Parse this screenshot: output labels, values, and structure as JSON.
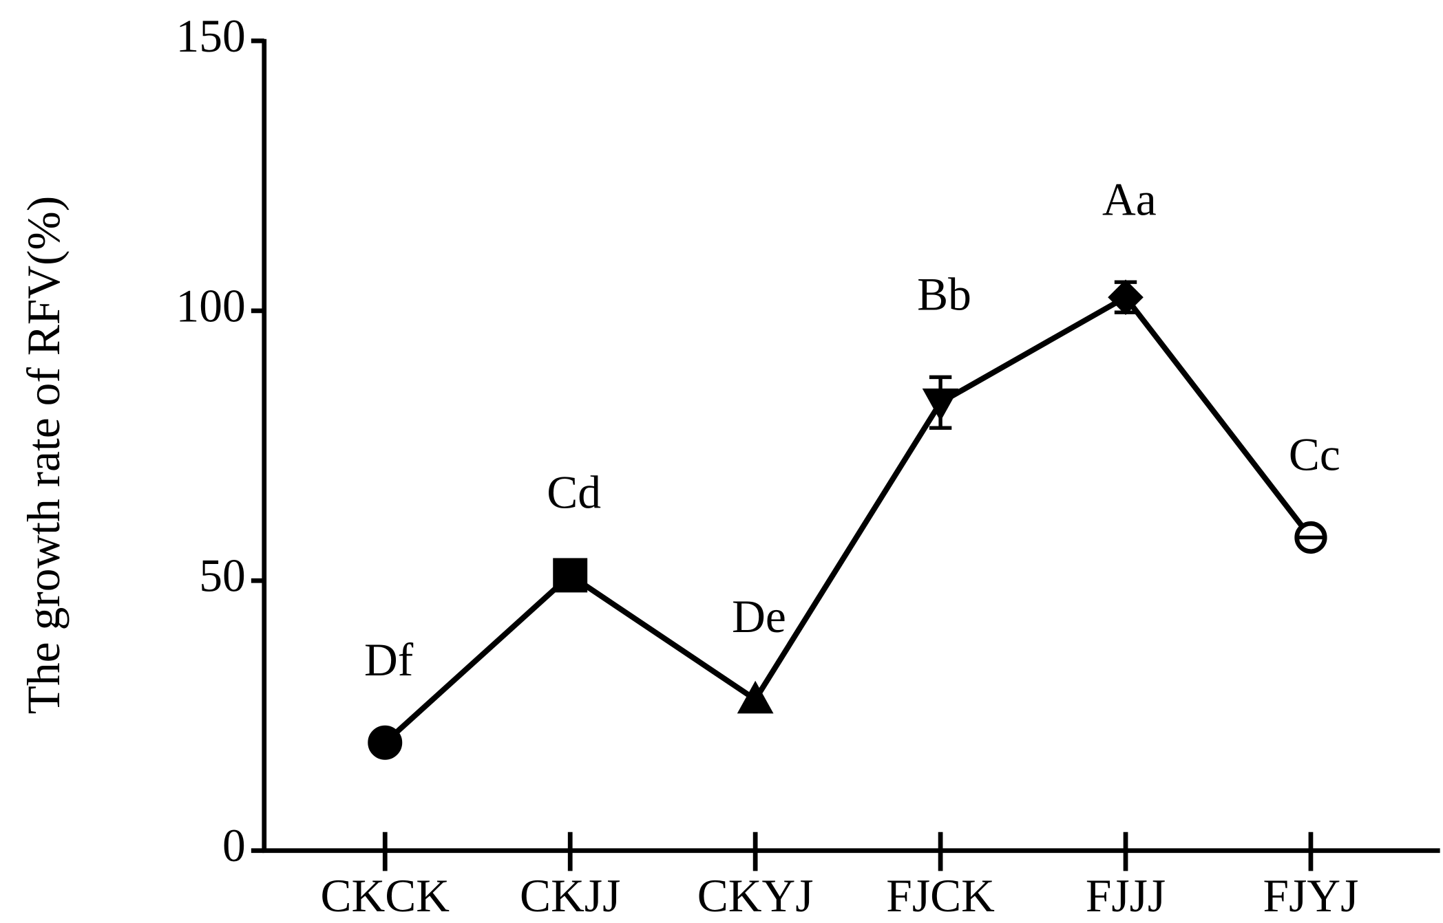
{
  "chart_data": {
    "type": "line",
    "y_label": "The growth rate of RFV(%)",
    "categories": [
      "CKCK",
      "CKJJ",
      "CKYJ",
      "FJCK",
      "FJJJ",
      "FJYJ"
    ],
    "series": [
      {
        "color": "#000000",
        "values": [
          20,
          51,
          28,
          83,
          102.5,
          58
        ],
        "errors": [
          null,
          null,
          null,
          4.7,
          2.8,
          null
        ],
        "markers": [
          "circle",
          "square",
          "triangle-up",
          "triangle-down",
          "diamond",
          "circle-open"
        ],
        "annotations": [
          "Df",
          "Cd",
          "De",
          "Bb",
          "Aa",
          "Cc"
        ]
      }
    ],
    "ylim": [
      0,
      150
    ],
    "yticks": [
      0,
      50,
      100,
      150
    ]
  }
}
